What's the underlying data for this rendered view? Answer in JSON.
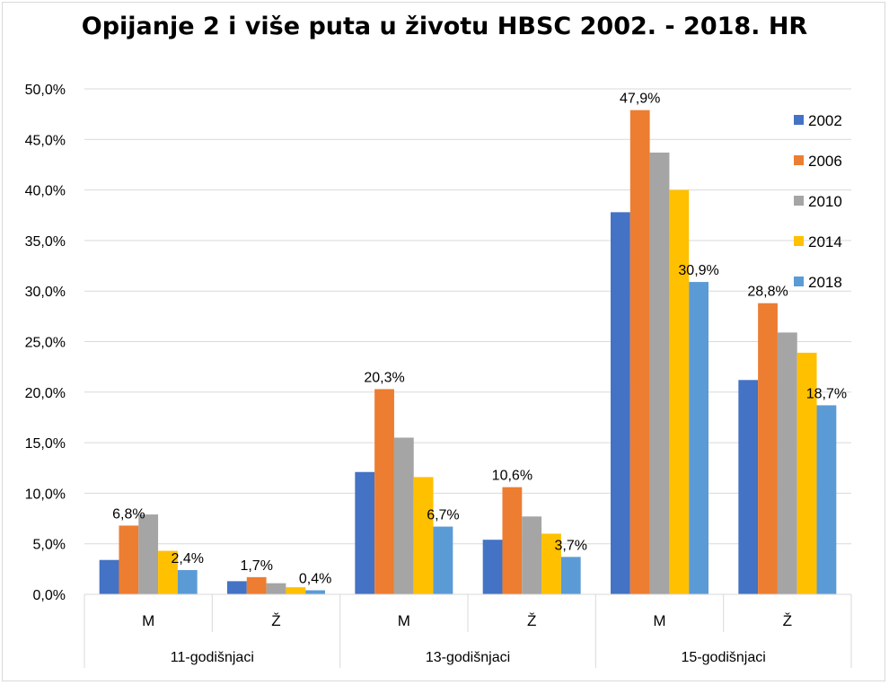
{
  "chart_data": {
    "type": "bar",
    "title": "Opijanje 2 i više puta u životu HBSC 2002. - 2018. HR",
    "xlabel": "",
    "ylabel": "",
    "ylim": [
      0,
      50
    ],
    "ytick_labels": [
      "0,0%",
      "5,0%",
      "10,0%",
      "15,0%",
      "20,0%",
      "25,0%",
      "30,0%",
      "35,0%",
      "40,0%",
      "45,0%",
      "50,0%"
    ],
    "grid": true,
    "legend_position": "right",
    "groups": [
      "11-godišnjaci",
      "13-godišnjaci",
      "15-godišnjaci"
    ],
    "categories": [
      "M",
      "Ž",
      "M",
      "Ž",
      "M",
      "Ž"
    ],
    "series": [
      {
        "name": "2002",
        "color": "#4472c4",
        "values": [
          3.4,
          1.3,
          12.1,
          5.4,
          37.8,
          21.2
        ]
      },
      {
        "name": "2006",
        "color": "#ed7d31",
        "values": [
          6.8,
          1.7,
          20.3,
          10.6,
          47.9,
          28.8
        ]
      },
      {
        "name": "2010",
        "color": "#a5a5a5",
        "values": [
          7.9,
          1.1,
          15.5,
          7.7,
          43.7,
          25.9
        ]
      },
      {
        "name": "2014",
        "color": "#ffc000",
        "values": [
          4.3,
          0.7,
          11.6,
          6.0,
          40.0,
          23.9
        ]
      },
      {
        "name": "2018",
        "color": "#5b9bd5",
        "values": [
          2.4,
          0.4,
          6.7,
          3.7,
          30.9,
          18.7
        ]
      }
    ],
    "data_labels": [
      {
        "series": 1,
        "category": 0,
        "text": "6,8%"
      },
      {
        "series": 4,
        "category": 0,
        "text": "2,4%"
      },
      {
        "series": 1,
        "category": 1,
        "text": "1,7%"
      },
      {
        "series": 4,
        "category": 1,
        "text": "0,4%"
      },
      {
        "series": 1,
        "category": 2,
        "text": "20,3%"
      },
      {
        "series": 4,
        "category": 2,
        "text": "6,7%"
      },
      {
        "series": 1,
        "category": 3,
        "text": "10,6%"
      },
      {
        "series": 4,
        "category": 3,
        "text": "3,7%"
      },
      {
        "series": 1,
        "category": 4,
        "text": "47,9%"
      },
      {
        "series": 4,
        "category": 4,
        "text": "30,9%"
      },
      {
        "series": 1,
        "category": 5,
        "text": "28,8%"
      },
      {
        "series": 4,
        "category": 5,
        "text": "18,7%"
      }
    ]
  }
}
